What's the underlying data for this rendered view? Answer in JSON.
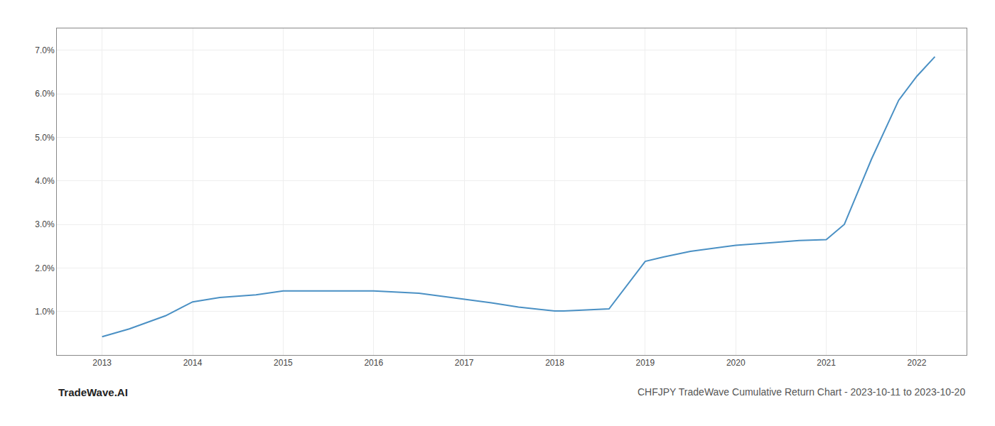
{
  "chart_data": {
    "type": "line",
    "title": "CHFJPY TradeWave Cumulative Return Chart - 2023-10-11 to 2023-10-20",
    "annotations": [
      "TradeWave.AI"
    ],
    "x": [
      2013.0,
      2013.3,
      2013.7,
      2014.0,
      2014.3,
      2014.7,
      2015.0,
      2015.5,
      2016.0,
      2016.5,
      2017.0,
      2017.3,
      2017.6,
      2018.0,
      2018.1,
      2018.3,
      2018.6,
      2019.0,
      2019.2,
      2019.5,
      2020.0,
      2020.4,
      2020.7,
      2021.0,
      2021.2,
      2021.5,
      2021.8,
      2022.0,
      2022.2
    ],
    "values": [
      0.42,
      0.6,
      0.9,
      1.22,
      1.32,
      1.38,
      1.47,
      1.47,
      1.47,
      1.42,
      1.28,
      1.2,
      1.1,
      1.01,
      1.01,
      1.03,
      1.06,
      2.15,
      2.25,
      2.38,
      2.52,
      2.58,
      2.63,
      2.65,
      3.0,
      4.5,
      5.85,
      6.4,
      6.85
    ],
    "color": "#4a90c4",
    "xlim": [
      2012.5,
      2022.55
    ],
    "ylim": [
      0.0,
      7.5
    ],
    "xticks": [
      2013,
      2014,
      2015,
      2016,
      2017,
      2018,
      2019,
      2020,
      2021,
      2022
    ],
    "yticks": [
      {
        "value": 1.0,
        "label": "1.0%"
      },
      {
        "value": 2.0,
        "label": "2.0%"
      },
      {
        "value": 3.0,
        "label": "3.0%"
      },
      {
        "value": 4.0,
        "label": "4.0%"
      },
      {
        "value": 5.0,
        "label": "5.0%"
      },
      {
        "value": 6.0,
        "label": "6.0%"
      },
      {
        "value": 7.0,
        "label": "7.0%"
      }
    ],
    "grid": true
  }
}
